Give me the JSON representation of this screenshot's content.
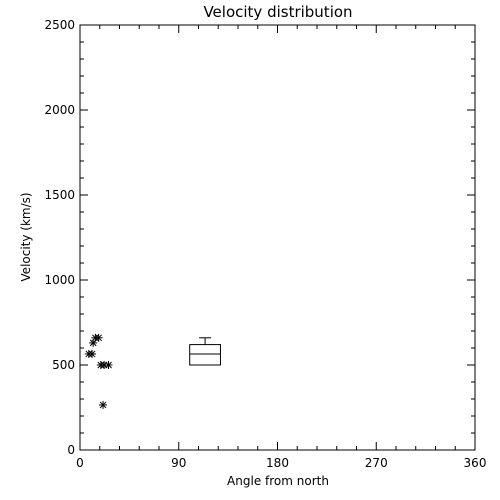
{
  "chart_data": {
    "type": "scatter",
    "title": "Velocity distribution",
    "xlabel": "Angle from north",
    "ylabel": "Velocity (km/s)",
    "xlim": [
      0,
      360
    ],
    "ylim": [
      0,
      2500
    ],
    "xticks": [
      0,
      90,
      180,
      270,
      360
    ],
    "yticks": [
      0,
      500,
      1000,
      1500,
      2000,
      2500
    ],
    "marker": "asterisk",
    "grid": false,
    "points": [
      {
        "x": 14,
        "y": 660
      },
      {
        "x": 17,
        "y": 660
      },
      {
        "x": 12,
        "y": 630
      },
      {
        "x": 8,
        "y": 565
      },
      {
        "x": 11,
        "y": 565
      },
      {
        "x": 19,
        "y": 500
      },
      {
        "x": 22,
        "y": 500
      },
      {
        "x": 26,
        "y": 500
      },
      {
        "x": 21,
        "y": 265
      }
    ],
    "boxplot": {
      "x_min": 100,
      "x_max": 128,
      "whisker_low": 500,
      "q1": 500,
      "median": 565,
      "q3": 620,
      "whisker_high": 660
    }
  }
}
